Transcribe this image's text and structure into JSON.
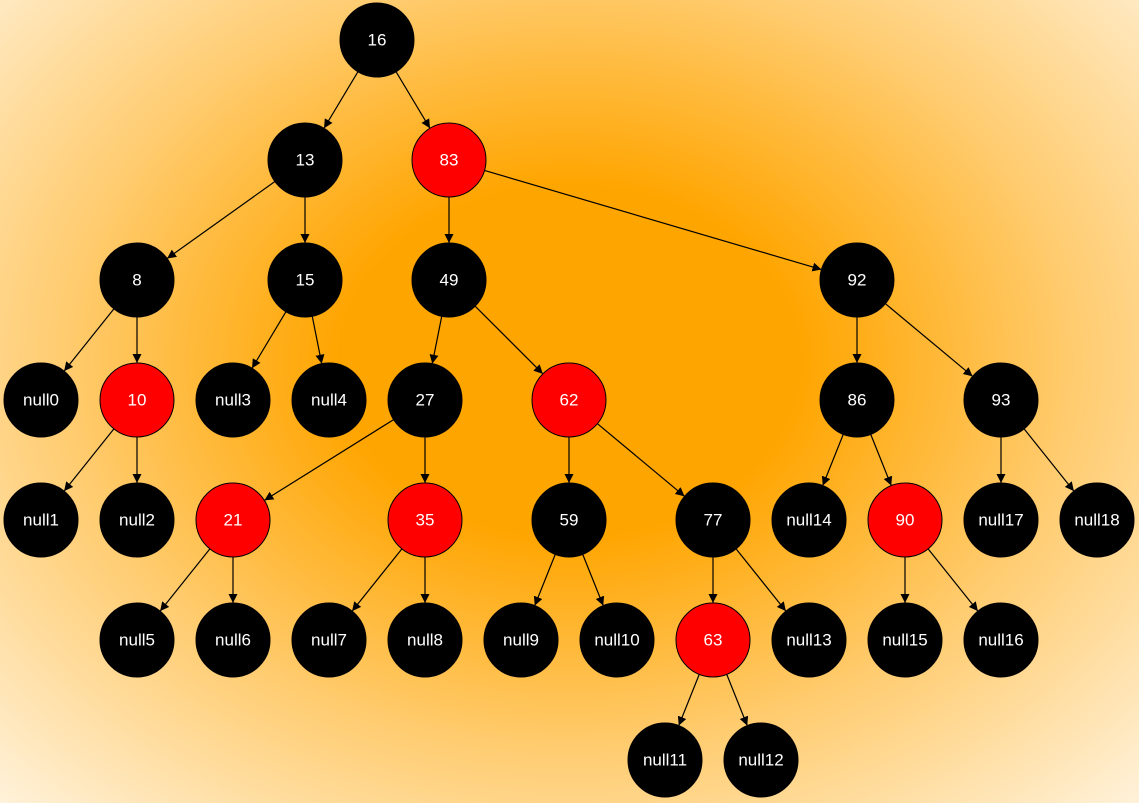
{
  "colors": {
    "black": "#000000",
    "red": "#ff0000",
    "text": "#ffffff"
  },
  "nodes": [
    {
      "id": "n16",
      "label": "16",
      "color": "black"
    },
    {
      "id": "n13",
      "label": "13",
      "color": "black"
    },
    {
      "id": "n83",
      "label": "83",
      "color": "red"
    },
    {
      "id": "n8",
      "label": "8",
      "color": "black"
    },
    {
      "id": "n15",
      "label": "15",
      "color": "black"
    },
    {
      "id": "n49",
      "label": "49",
      "color": "black"
    },
    {
      "id": "n92",
      "label": "92",
      "color": "black"
    },
    {
      "id": "null0",
      "label": "null0",
      "color": "black"
    },
    {
      "id": "n10",
      "label": "10",
      "color": "red"
    },
    {
      "id": "null3",
      "label": "null3",
      "color": "black"
    },
    {
      "id": "null4",
      "label": "null4",
      "color": "black"
    },
    {
      "id": "n27",
      "label": "27",
      "color": "black"
    },
    {
      "id": "n62",
      "label": "62",
      "color": "red"
    },
    {
      "id": "n86",
      "label": "86",
      "color": "black"
    },
    {
      "id": "n93",
      "label": "93",
      "color": "black"
    },
    {
      "id": "null1",
      "label": "null1",
      "color": "black"
    },
    {
      "id": "null2",
      "label": "null2",
      "color": "black"
    },
    {
      "id": "n21",
      "label": "21",
      "color": "red"
    },
    {
      "id": "n35",
      "label": "35",
      "color": "red"
    },
    {
      "id": "n59",
      "label": "59",
      "color": "black"
    },
    {
      "id": "n77",
      "label": "77",
      "color": "black"
    },
    {
      "id": "null14",
      "label": "null14",
      "color": "black"
    },
    {
      "id": "n90",
      "label": "90",
      "color": "red"
    },
    {
      "id": "null17",
      "label": "null17",
      "color": "black"
    },
    {
      "id": "null18",
      "label": "null18",
      "color": "black"
    },
    {
      "id": "null5",
      "label": "null5",
      "color": "black"
    },
    {
      "id": "null6",
      "label": "null6",
      "color": "black"
    },
    {
      "id": "null7",
      "label": "null7",
      "color": "black"
    },
    {
      "id": "null8",
      "label": "null8",
      "color": "black"
    },
    {
      "id": "null9",
      "label": "null9",
      "color": "black"
    },
    {
      "id": "null10",
      "label": "null10",
      "color": "black"
    },
    {
      "id": "n63",
      "label": "63",
      "color": "red"
    },
    {
      "id": "null13",
      "label": "null13",
      "color": "black"
    },
    {
      "id": "null15",
      "label": "null15",
      "color": "black"
    },
    {
      "id": "null16",
      "label": "null16",
      "color": "black"
    },
    {
      "id": "null11",
      "label": "null11",
      "color": "black"
    },
    {
      "id": "null12",
      "label": "null12",
      "color": "black"
    }
  ],
  "edges": [
    [
      "n16",
      "n13"
    ],
    [
      "n16",
      "n83"
    ],
    [
      "n13",
      "n8"
    ],
    [
      "n13",
      "n15"
    ],
    [
      "n83",
      "n49"
    ],
    [
      "n83",
      "n92"
    ],
    [
      "n8",
      "null0"
    ],
    [
      "n8",
      "n10"
    ],
    [
      "n15",
      "null3"
    ],
    [
      "n15",
      "null4"
    ],
    [
      "n49",
      "n27"
    ],
    [
      "n49",
      "n62"
    ],
    [
      "n92",
      "n86"
    ],
    [
      "n92",
      "n93"
    ],
    [
      "n10",
      "null1"
    ],
    [
      "n10",
      "null2"
    ],
    [
      "n27",
      "n21"
    ],
    [
      "n27",
      "n35"
    ],
    [
      "n62",
      "n59"
    ],
    [
      "n62",
      "n77"
    ],
    [
      "n86",
      "null14"
    ],
    [
      "n86",
      "n90"
    ],
    [
      "n93",
      "null17"
    ],
    [
      "n93",
      "null18"
    ],
    [
      "n21",
      "null5"
    ],
    [
      "n21",
      "null6"
    ],
    [
      "n35",
      "null7"
    ],
    [
      "n35",
      "null8"
    ],
    [
      "n59",
      "null9"
    ],
    [
      "n59",
      "null10"
    ],
    [
      "n77",
      "n63"
    ],
    [
      "n77",
      "null13"
    ],
    [
      "n90",
      "null15"
    ],
    [
      "n90",
      "null16"
    ],
    [
      "n63",
      "null11"
    ],
    [
      "n63",
      "null12"
    ]
  ]
}
